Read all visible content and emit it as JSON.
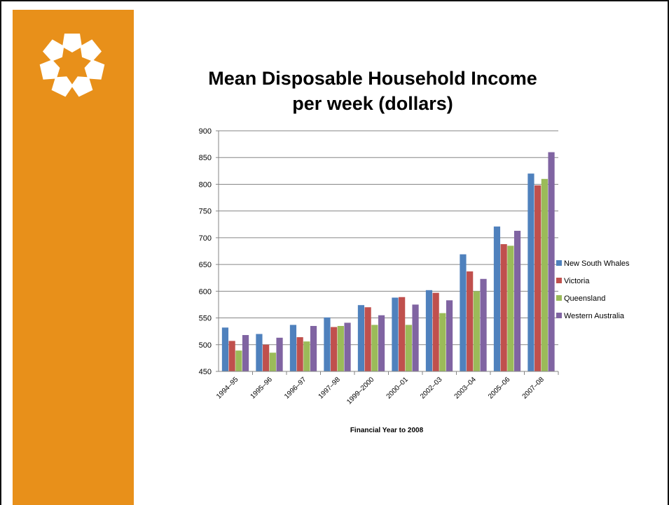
{
  "slide": {
    "accent_color": "#e8901a",
    "logo_icon": "star-ring-logo-icon"
  },
  "chart_data": {
    "type": "bar",
    "title_lines": [
      "Mean Disposable Household Income",
      "per week (dollars)"
    ],
    "xlabel": "Financial Year to 2008",
    "ylabel": "",
    "ylim": [
      450,
      900
    ],
    "yticks": [
      450,
      500,
      550,
      600,
      650,
      700,
      750,
      800,
      850,
      900
    ],
    "grid": true,
    "legend_position": "right",
    "categories": [
      "1994–95",
      "1995–96",
      "1996–97",
      "1997–98",
      "1999–2000",
      "2000–01",
      "2002–03",
      "2003–04",
      "2005–06",
      "2007–08"
    ],
    "series": [
      {
        "name": "New South Whales",
        "color": "#4f81bd",
        "values": [
          532,
          520,
          537,
          551,
          574,
          588,
          602,
          669,
          721,
          820
        ]
      },
      {
        "name": "Victoria",
        "color": "#c0504d",
        "values": [
          507,
          500,
          514,
          533,
          570,
          589,
          597,
          637,
          688,
          798
        ]
      },
      {
        "name": "Queensland",
        "color": "#9bbb59",
        "values": [
          489,
          485,
          506,
          535,
          537,
          537,
          559,
          600,
          685,
          810
        ]
      },
      {
        "name": "Western Australia",
        "color": "#8064a2",
        "values": [
          518,
          513,
          535,
          541,
          555,
          575,
          583,
          623,
          713,
          860
        ]
      }
    ]
  }
}
